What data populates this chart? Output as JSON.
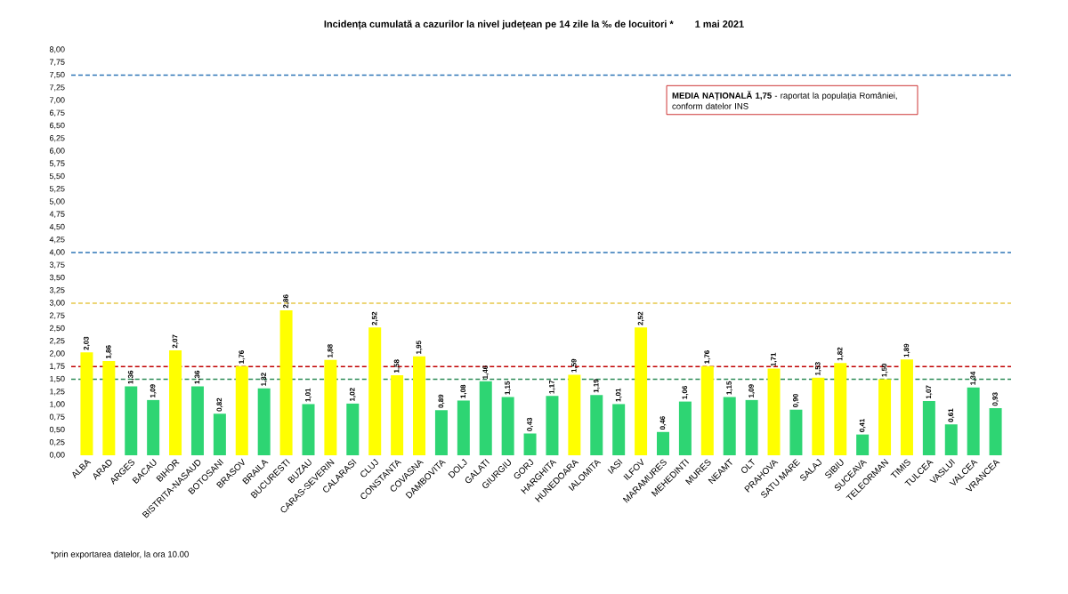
{
  "chart_data": {
    "type": "bar",
    "title": "Incidența cumulată a cazurilor la nivel județean pe 14 zile la ‰ de locuitori *",
    "subtitle": "1 mai 2021",
    "categories": [
      "ALBA",
      "ARAD",
      "ARGES",
      "BACAU",
      "BIHOR",
      "BISTRITA-NASAUD",
      "BOTOSANI",
      "BRASOV",
      "BRAILA",
      "BUCURESTI",
      "BUZAU",
      "CARAS-SEVERIN",
      "CALARASI",
      "CLUJ",
      "CONSTANTA",
      "COVASNA",
      "DAMBOVITA",
      "DOLJ",
      "GALATI",
      "GIURGIU",
      "GORJ",
      "HARGHITA",
      "HUNEDOARA",
      "IALOMITA",
      "IASI",
      "ILFOV",
      "MARAMURES",
      "MEHEDINTI",
      "MURES",
      "NEAMT",
      "OLT",
      "PRAHOVA",
      "SATU MARE",
      "SALAJ",
      "SIBIU",
      "SUCEAVA",
      "TELEORMAN",
      "TIMIS",
      "TULCEA",
      "VASLUI",
      "VALCEA",
      "VRANCEA"
    ],
    "values": [
      2.03,
      1.86,
      1.36,
      1.09,
      2.07,
      1.36,
      0.82,
      1.76,
      1.32,
      2.86,
      1.01,
      1.88,
      1.02,
      2.52,
      1.58,
      1.95,
      0.89,
      1.08,
      1.46,
      1.15,
      0.43,
      1.17,
      1.59,
      1.19,
      1.01,
      2.52,
      0.46,
      1.06,
      1.76,
      1.15,
      1.09,
      1.71,
      0.9,
      1.53,
      1.82,
      0.41,
      1.5,
      1.89,
      1.07,
      0.61,
      1.34,
      0.93
    ],
    "value_labels": [
      "2,03",
      "1,86",
      "1,36",
      "1,09",
      "2,07",
      "1,36",
      "0,82",
      "1,76",
      "1,32",
      "2,86",
      "1,01",
      "1,88",
      "1,02",
      "2,52",
      "1,58",
      "1,95",
      "0,89",
      "1,08",
      "1,46",
      "1,15",
      "0,43",
      "1,17",
      "1,59",
      "1,19",
      "1,01",
      "2,52",
      "0,46",
      "1,06",
      "1,76",
      "1,15",
      "1,09",
      "1,71",
      "0,90",
      "1,53",
      "1,82",
      "0,41",
      "1,50",
      "1,89",
      "1,07",
      "0,61",
      "1,34",
      "0,93"
    ],
    "colors": [
      "#ffff00",
      "#ffff00",
      "#2ed573",
      "#2ed573",
      "#ffff00",
      "#2ed573",
      "#2ed573",
      "#ffff00",
      "#2ed573",
      "#ffff00",
      "#2ed573",
      "#ffff00",
      "#2ed573",
      "#ffff00",
      "#ffff00",
      "#ffff00",
      "#2ed573",
      "#2ed573",
      "#2ed573",
      "#2ed573",
      "#2ed573",
      "#2ed573",
      "#ffff00",
      "#2ed573",
      "#2ed573",
      "#ffff00",
      "#2ed573",
      "#2ed573",
      "#ffff00",
      "#2ed573",
      "#2ed573",
      "#ffff00",
      "#2ed573",
      "#ffff00",
      "#ffff00",
      "#2ed573",
      "#ffff00",
      "#ffff00",
      "#2ed573",
      "#2ed573",
      "#2ed573",
      "#2ed573"
    ],
    "ylim": [
      0,
      8
    ],
    "yticks": [
      {
        "value": 0,
        "label": "0,00"
      },
      {
        "value": 0.25,
        "label": "0,25"
      },
      {
        "value": 0.5,
        "label": "0,50"
      },
      {
        "value": 0.75,
        "label": "0,75"
      },
      {
        "value": 1,
        "label": "1,00"
      },
      {
        "value": 1.25,
        "label": "1,25"
      },
      {
        "value": 1.5,
        "label": "1,50"
      },
      {
        "value": 1.75,
        "label": "1,75"
      },
      {
        "value": 2,
        "label": "2,00"
      },
      {
        "value": 2.25,
        "label": "2,25"
      },
      {
        "value": 2.5,
        "label": "2,50"
      },
      {
        "value": 2.75,
        "label": "2,75"
      },
      {
        "value": 3,
        "label": "3,00"
      },
      {
        "value": 3.25,
        "label": "3,25"
      },
      {
        "value": 3.5,
        "label": "3,50"
      },
      {
        "value": 3.75,
        "label": "3,75"
      },
      {
        "value": 4,
        "label": "4,00"
      },
      {
        "value": 4.25,
        "label": "4,25"
      },
      {
        "value": 4.5,
        "label": "4,50"
      },
      {
        "value": 4.75,
        "label": "4,75"
      },
      {
        "value": 5,
        "label": "5,00"
      },
      {
        "value": 5.25,
        "label": "5,25"
      },
      {
        "value": 5.5,
        "label": "5,50"
      },
      {
        "value": 5.75,
        "label": "5,75"
      },
      {
        "value": 6,
        "label": "6,00"
      },
      {
        "value": 6.25,
        "label": "6,25"
      },
      {
        "value": 6.5,
        "label": "6,50"
      },
      {
        "value": 6.75,
        "label": "6,75"
      },
      {
        "value": 7,
        "label": "7,00"
      },
      {
        "value": 7.25,
        "label": "7,25"
      },
      {
        "value": 7.5,
        "label": "7,50"
      },
      {
        "value": 7.75,
        "label": "7,75"
      },
      {
        "value": 8,
        "label": "8,00"
      }
    ],
    "ref_lines": [
      {
        "axis": "y",
        "value": 7.5,
        "color": "#2e75b6",
        "line_style": "dashed"
      },
      {
        "axis": "y",
        "value": 4,
        "color": "#2e75b6",
        "line_style": "dashed"
      },
      {
        "axis": "y",
        "value": 3,
        "color": "#e6c84a",
        "line_style": "dashed"
      },
      {
        "axis": "y",
        "value": 1.75,
        "color": "#c00000",
        "line_style": "dashed"
      },
      {
        "axis": "y",
        "value": 1.5,
        "color": "#2e8b57",
        "line_style": "dashed"
      }
    ],
    "annotations": [
      "**MEDIA NAȚIONALĂ 1,75** - raportat la populația României, conform datelor INS",
      "*prin exportarea datelor, la ora 10.00"
    ]
  }
}
